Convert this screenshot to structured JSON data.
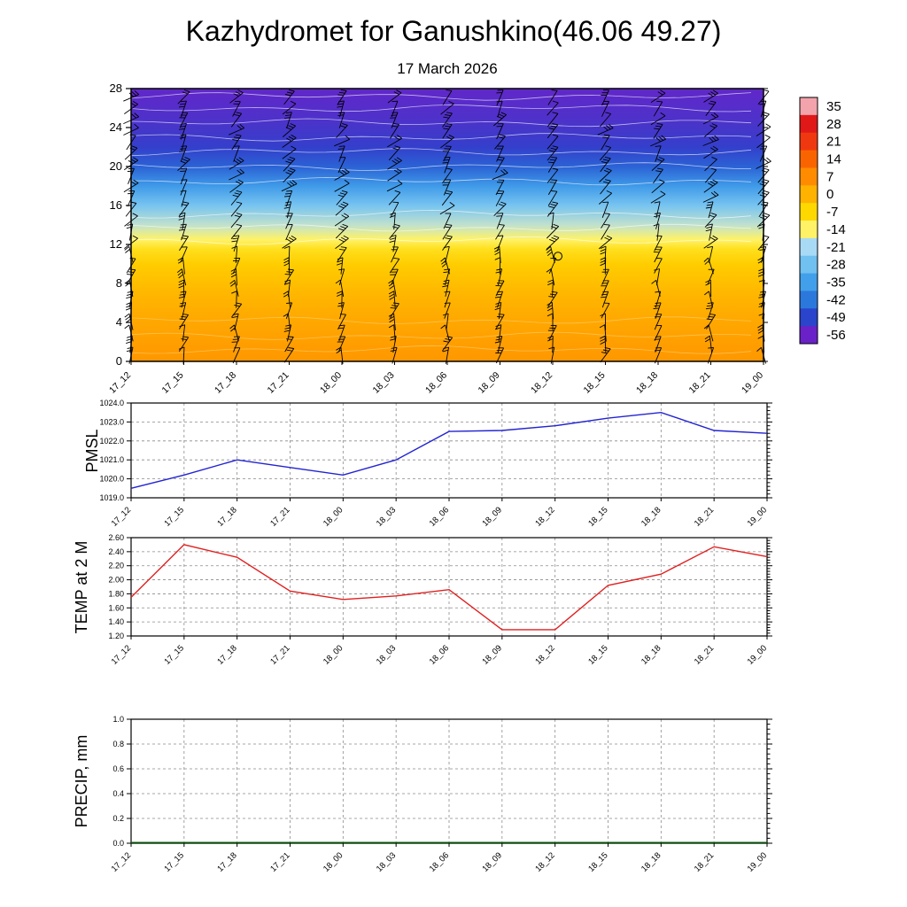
{
  "title": "Kazhydromet for Ganushkino(46.06 49.27)",
  "subtitle": "17 March 2026",
  "time_labels": [
    "17_12",
    "17_15",
    "17_18",
    "17_21",
    "18_00",
    "18_03",
    "18_06",
    "18_09",
    "18_12",
    "18_15",
    "18_18",
    "18_21",
    "19_00"
  ],
  "chart_data": [
    {
      "type": "heatmap",
      "name": "temperature-height-cross-section",
      "ylabel": "",
      "ylim": [
        0,
        28
      ],
      "yticks": [
        0,
        4,
        8,
        12,
        16,
        20,
        24,
        28
      ],
      "grid": false,
      "profile": [
        {
          "h": 28,
          "t": -55
        },
        {
          "h": 25,
          "t": -53
        },
        {
          "h": 22,
          "t": -50
        },
        {
          "h": 20,
          "t": -45
        },
        {
          "h": 18,
          "t": -36
        },
        {
          "h": 16,
          "t": -27
        },
        {
          "h": 14,
          "t": -19
        },
        {
          "h": 12.5,
          "t": -14
        },
        {
          "h": 11.5,
          "t": -9
        },
        {
          "h": 10,
          "t": -5
        },
        {
          "h": 7,
          "t": -1
        },
        {
          "h": 4,
          "t": 2
        },
        {
          "h": 0,
          "t": 5
        }
      ],
      "calm_marker": {
        "x_index": 8.1,
        "height": 10.8
      },
      "wind_barbs": true,
      "colorbar": {
        "position": "right",
        "tick_labels": [
          "35",
          "28",
          "21",
          "14",
          "7",
          "0",
          "-7",
          "-14",
          "-21",
          "-28",
          "-35",
          "-42",
          "-49",
          "-56"
        ],
        "tick_values": [
          35,
          28,
          21,
          14,
          7,
          0,
          -7,
          -14,
          -21,
          -28,
          -35,
          -42,
          -49,
          -56
        ],
        "colors": [
          "#f2a3ac",
          "#e11818",
          "#f03810",
          "#fa6400",
          "#ff8c00",
          "#ffb200",
          "#ffd800",
          "#fff266",
          "#a8daf6",
          "#70c0f0",
          "#42a0ea",
          "#2b78dc",
          "#2b44cc",
          "#6a22c8"
        ]
      }
    },
    {
      "type": "line",
      "name": "pmsl",
      "ylabel": "PMSL",
      "color": "#2323d2",
      "ylim": [
        1019.0,
        1024.0
      ],
      "ytick_labels": [
        "1019.0",
        "1020.0",
        "1021.0",
        "1022.0",
        "1023.0",
        "1024.0"
      ],
      "grid": true,
      "values": [
        1019.5,
        1020.2,
        1021.0,
        1020.6,
        1020.2,
        1021.0,
        1022.5,
        1022.55,
        1022.8,
        1023.2,
        1023.5,
        1022.55,
        1022.4
      ]
    },
    {
      "type": "line",
      "name": "temp-at-2m",
      "ylabel": "TEMP at 2 M",
      "color": "#e02020",
      "ylim": [
        1.2,
        2.6
      ],
      "ytick_labels": [
        "1.20",
        "1.40",
        "1.60",
        "1.80",
        "2.00",
        "2.20",
        "2.40",
        "2.60"
      ],
      "grid": true,
      "values": [
        1.75,
        2.5,
        2.32,
        1.84,
        1.72,
        1.77,
        1.86,
        1.29,
        1.29,
        1.92,
        2.08,
        2.47,
        2.33
      ]
    },
    {
      "type": "line",
      "name": "precip",
      "ylabel": "PRECIP, mm",
      "color": "#006400",
      "ylim": [
        0.0,
        1.0
      ],
      "ytick_labels": [
        "0.0",
        "0.2",
        "0.4",
        "0.6",
        "0.8",
        "1.0"
      ],
      "grid": true,
      "values": [
        0,
        0,
        0,
        0,
        0,
        0,
        0,
        0,
        0,
        0,
        0,
        0,
        0
      ]
    }
  ]
}
